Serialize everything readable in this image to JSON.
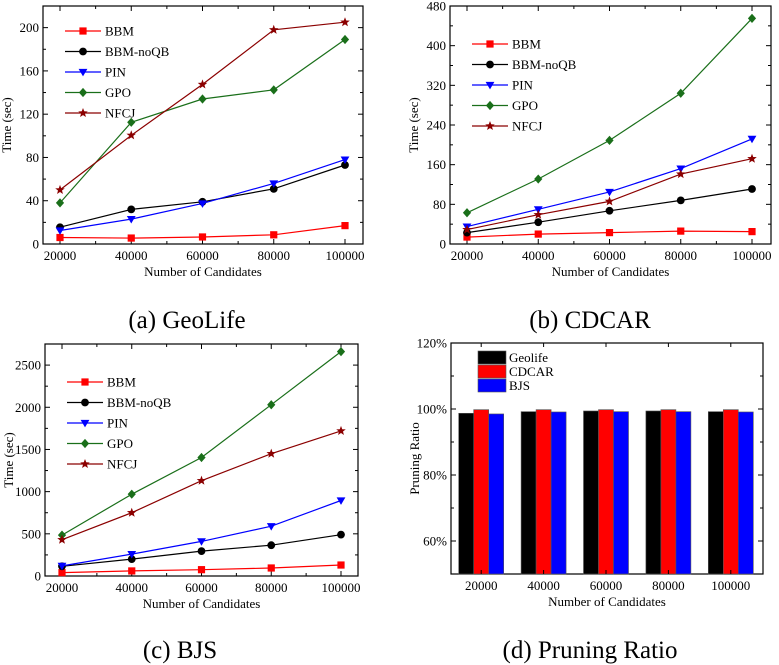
{
  "chart_data": [
    {
      "id": "a",
      "type": "line",
      "caption": "(a)  GeoLife",
      "xlabel": "Number of Candidates",
      "ylabel": "Time (sec)",
      "x": [
        20000,
        40000,
        60000,
        80000,
        100000
      ],
      "x_ticks": [
        "20000",
        "40000",
        "60000",
        "80000",
        "100000"
      ],
      "ylim": [
        0,
        220
      ],
      "y_ticks": [
        0,
        40,
        80,
        120,
        160,
        200
      ],
      "legend": "top-left",
      "series": [
        {
          "name": "BBM",
          "color": "#ff0000",
          "marker": "square",
          "values": [
            6,
            5.5,
            6.5,
            8.5,
            17
          ]
        },
        {
          "name": "BBM-noQB",
          "color": "#000000",
          "marker": "circle",
          "values": [
            15.5,
            32,
            39,
            51,
            73
          ]
        },
        {
          "name": "PIN",
          "color": "#0000ff",
          "marker": "triangle-down",
          "values": [
            12.5,
            23,
            37.5,
            56,
            78
          ]
        },
        {
          "name": "GPO",
          "color": "#1a6f1a",
          "marker": "diamond",
          "values": [
            38,
            112.5,
            134,
            142.5,
            189
          ]
        },
        {
          "name": "NFCJ",
          "color": "#8b0000",
          "marker": "star",
          "values": [
            50,
            100.5,
            147.5,
            198,
            205
          ]
        }
      ]
    },
    {
      "id": "b",
      "type": "line",
      "caption": "(b)  CDCAR",
      "xlabel": "Number of Candidates",
      "ylabel": "Time (sec)",
      "x": [
        20000,
        40000,
        60000,
        80000,
        100000
      ],
      "x_ticks": [
        "20000",
        "40000",
        "60000",
        "80000",
        "100000"
      ],
      "ylim": [
        0,
        480
      ],
      "y_ticks": [
        0,
        80,
        160,
        240,
        320,
        400,
        480
      ],
      "legend": "top-left",
      "series": [
        {
          "name": "BBM",
          "color": "#ff0000",
          "marker": "square",
          "values": [
            14,
            20,
            23,
            26,
            25
          ]
        },
        {
          "name": "BBM-noQB",
          "color": "#000000",
          "marker": "circle",
          "values": [
            23,
            44,
            67,
            88,
            111
          ]
        },
        {
          "name": "PIN",
          "color": "#0000ff",
          "marker": "triangle-down",
          "values": [
            35,
            70,
            105,
            152,
            212
          ]
        },
        {
          "name": "GPO",
          "color": "#1a6f1a",
          "marker": "diamond",
          "values": [
            63,
            131,
            209,
            304,
            455
          ]
        },
        {
          "name": "NFCJ",
          "color": "#8b0000",
          "marker": "star",
          "values": [
            29,
            59,
            86,
            141,
            172
          ]
        }
      ]
    },
    {
      "id": "c",
      "type": "line",
      "caption": "(c)  BJS",
      "xlabel": "Number of Candidates",
      "ylabel": "Time (sec)",
      "x": [
        20000,
        40000,
        60000,
        80000,
        100000
      ],
      "x_ticks": [
        "20000",
        "40000",
        "60000",
        "80000",
        "100000"
      ],
      "ylim": [
        0,
        2750
      ],
      "y_ticks": [
        0,
        500,
        1000,
        1500,
        2000,
        2500
      ],
      "legend": "top-left",
      "series": [
        {
          "name": "BBM",
          "color": "#ff0000",
          "marker": "square",
          "values": [
            40,
            60,
            75,
            95,
            130
          ]
        },
        {
          "name": "BBM-noQB",
          "color": "#000000",
          "marker": "circle",
          "values": [
            115,
            200,
            295,
            365,
            490
          ]
        },
        {
          "name": "PIN",
          "color": "#0000ff",
          "marker": "triangle-down",
          "values": [
            120,
            260,
            410,
            590,
            895
          ]
        },
        {
          "name": "GPO",
          "color": "#1a6f1a",
          "marker": "diamond",
          "values": [
            485,
            970,
            1405,
            2030,
            2660
          ]
        },
        {
          "name": "NFCJ",
          "color": "#8b0000",
          "marker": "star",
          "values": [
            430,
            750,
            1130,
            1450,
            1720
          ]
        }
      ]
    },
    {
      "id": "d",
      "type": "bar",
      "caption": "(d)  Pruning Ratio",
      "xlabel": "Number of Candidates",
      "ylabel": "Pruning Ratio",
      "categories": [
        "20000",
        "40000",
        "60000",
        "80000",
        "100000"
      ],
      "ylim": [
        50,
        120
      ],
      "y_ticks": [
        "60%",
        "80%",
        "100%",
        "120%"
      ],
      "y_tick_values": [
        60,
        80,
        100,
        120
      ],
      "legend": "top-left",
      "series": [
        {
          "name": "Geolife",
          "color": "#000000",
          "values": [
            98.7,
            99.2,
            99.4,
            99.4,
            99.2
          ]
        },
        {
          "name": "CDCAR",
          "color": "#ff0000",
          "values": [
            99.8,
            99.8,
            99.8,
            99.8,
            99.8
          ]
        },
        {
          "name": "BJS",
          "color": "#0000ff",
          "values": [
            98.5,
            99.1,
            99.2,
            99.2,
            99.1
          ]
        }
      ]
    }
  ]
}
